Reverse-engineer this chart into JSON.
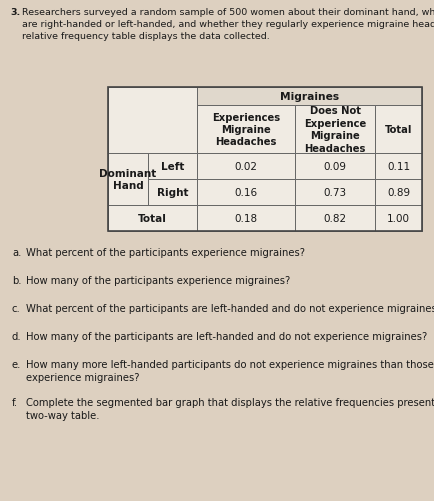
{
  "problem_number": "3.",
  "intro_text": "Researchers surveyed a random sample of 500 women about their dominant hand, whether they\nare right-handed or left-handed, and whether they regularly experience migraine headaches. The\nrelative frequency table displays the data collected.",
  "table": {
    "col_header_main": "Migraines",
    "col_headers": [
      "Experiences\nMigraine\nHeadaches",
      "Does Not\nExperience\nMigraine\nHeadaches",
      "Total"
    ],
    "row_header_main": "Dominant\nHand",
    "rows": [
      [
        "Left",
        "0.02",
        "0.09",
        "0.11"
      ],
      [
        "Right",
        "0.16",
        "0.73",
        "0.89"
      ],
      [
        "Total",
        "0.18",
        "0.82",
        "1.00"
      ]
    ]
  },
  "questions": [
    [
      "a.",
      "What percent of the participants experience migraines?"
    ],
    [
      "b.",
      "How many of the participants experience migraines?"
    ],
    [
      "c.",
      "What percent of the participants are left-handed and do not experience migraines?"
    ],
    [
      "d.",
      "How many of the participants are left-handed and do not experience migraines?"
    ],
    [
      "e.",
      "How many more left-handed participants do not experience migraines than those who\nexperience migraines?"
    ],
    [
      "f.",
      "Complete the segmented bar graph that displays the relative frequencies presented in the\ntwo-way table."
    ]
  ],
  "bg_color": "#ddd0c0",
  "table_bg": "#f0ebe3",
  "header_bg": "#e0d8cc",
  "text_color": "#1a1a1a",
  "font_size_intro": 6.8,
  "font_size_table_header": 7.2,
  "font_size_table_data": 7.5,
  "font_size_questions": 7.2
}
